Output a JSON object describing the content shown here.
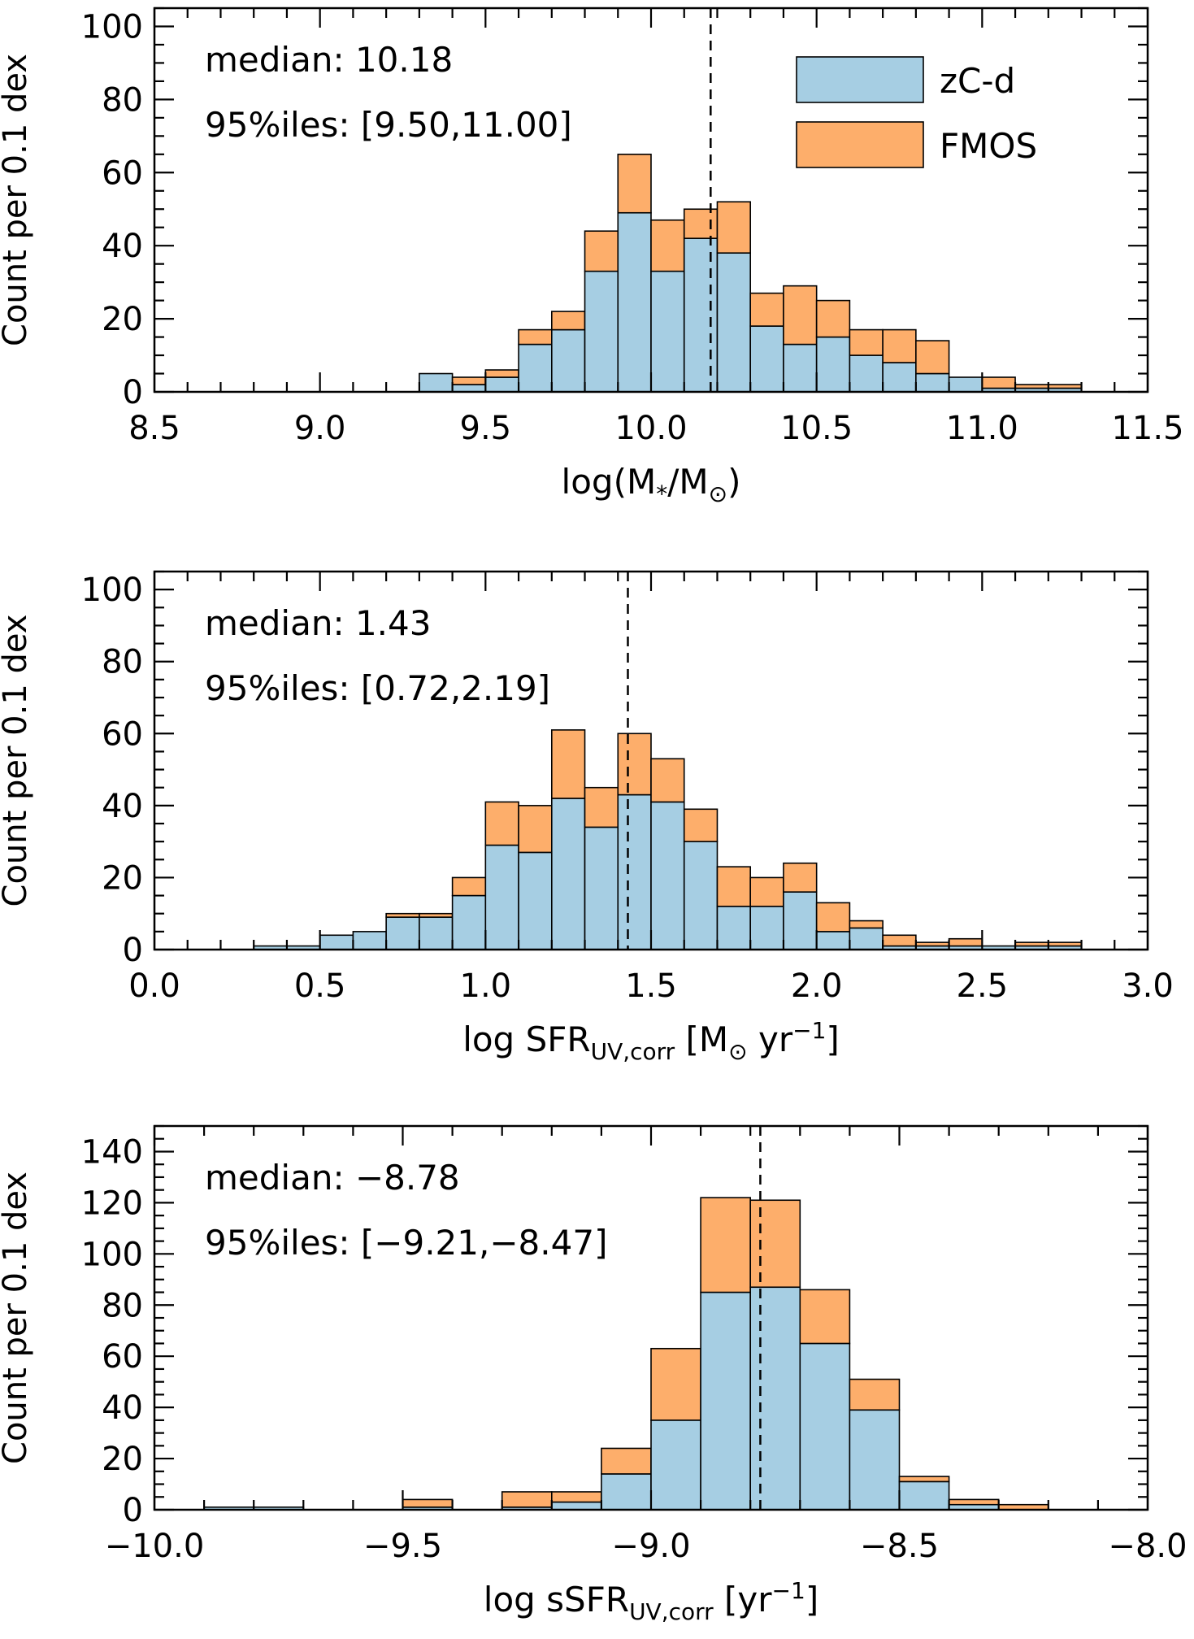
{
  "chart_data": [
    {
      "type": "bar",
      "id": "mass",
      "stacked": true,
      "xlabel": "log(M",
      "xlabel_sub": "*",
      "xlabel_mid": "/M",
      "xlabel_sub2": "⊙",
      "xlabel_end": ")",
      "ylabel": "Count per 0.1 dex",
      "xlim": [
        8.5,
        11.5
      ],
      "ylim": [
        0,
        105
      ],
      "xticks": [
        "8.5",
        "9.0",
        "9.5",
        "10.0",
        "10.5",
        "11.0",
        "11.5"
      ],
      "xtick_values": [
        8.5,
        9.0,
        9.5,
        10.0,
        10.5,
        11.0,
        11.5
      ],
      "yticks": [
        "0",
        "20",
        "40",
        "60",
        "80",
        "100"
      ],
      "ytick_values": [
        0,
        20,
        40,
        60,
        80,
        100
      ],
      "bin_width": 0.1,
      "bin_start": 9.3,
      "series": [
        {
          "name": "zC-d",
          "color": "#a6cee3",
          "values": [
            5,
            2,
            4,
            13,
            17,
            33,
            49,
            33,
            42,
            38,
            18,
            13,
            15,
            10,
            8,
            5,
            4,
            1,
            1,
            1,
            0,
            0
          ]
        },
        {
          "name": "FMOS",
          "color": "#fdae6b",
          "values": [
            0,
            2,
            2,
            4,
            5,
            11,
            16,
            14,
            8,
            14,
            9,
            16,
            10,
            7,
            9,
            9,
            0,
            3,
            1,
            1,
            0,
            0
          ]
        }
      ],
      "median_line": 10.18,
      "median_text": "median: 10.18",
      "percentile_text": "95%iles: [9.50,11.00]",
      "legend": [
        {
          "label": "zC-d",
          "color": "#a6cee3"
        },
        {
          "label": "FMOS",
          "color": "#fdae6b"
        }
      ],
      "legend_position": "top-right"
    },
    {
      "type": "bar",
      "id": "sfr",
      "stacked": true,
      "xlabel": "log SFR",
      "xlabel_sub": "UV,corr",
      "xlabel_end": " [M",
      "xlabel_sub2": "⊙",
      "xlabel_end2": " yr",
      "xlabel_sup": "−1",
      "xlabel_close": "]",
      "ylabel": "Count per 0.1 dex",
      "xlim": [
        0.0,
        3.0
      ],
      "ylim": [
        0,
        105
      ],
      "xticks": [
        "0.0",
        "0.5",
        "1.0",
        "1.5",
        "2.0",
        "2.5",
        "3.0"
      ],
      "xtick_values": [
        0.0,
        0.5,
        1.0,
        1.5,
        2.0,
        2.5,
        3.0
      ],
      "yticks": [
        "0",
        "20",
        "40",
        "60",
        "80",
        "100"
      ],
      "ytick_values": [
        0,
        20,
        40,
        60,
        80,
        100
      ],
      "bin_width": 0.1,
      "bin_start": 0.3,
      "series": [
        {
          "name": "zC-d",
          "color": "#a6cee3",
          "values": [
            1,
            1,
            4,
            5,
            9,
            9,
            15,
            29,
            27,
            42,
            34,
            43,
            41,
            30,
            12,
            12,
            16,
            5,
            6,
            1,
            1,
            1,
            1,
            1,
            1
          ]
        },
        {
          "name": "FMOS",
          "color": "#fdae6b",
          "values": [
            0,
            0,
            0,
            0,
            1,
            1,
            5,
            12,
            13,
            19,
            11,
            17,
            12,
            9,
            11,
            8,
            8,
            8,
            2,
            3,
            1,
            2,
            0,
            1,
            1
          ]
        }
      ],
      "median_line": 1.43,
      "median_text": "median: 1.43",
      "percentile_text": "95%iles: [0.72,2.19]"
    },
    {
      "type": "bar",
      "id": "ssfr",
      "stacked": true,
      "xlabel": "log sSFR",
      "xlabel_sub": "UV,corr",
      "xlabel_end": " [yr",
      "xlabel_sup": "−1",
      "xlabel_close": "]",
      "ylabel": "Count per 0.1 dex",
      "xlim": [
        -10.0,
        -8.0
      ],
      "ylim": [
        0,
        150
      ],
      "xticks": [
        "−10.0",
        "−9.5",
        "−9.0",
        "−8.5",
        "−8.0"
      ],
      "xtick_values": [
        -10.0,
        -9.5,
        -9.0,
        -8.5,
        -8.0
      ],
      "yticks": [
        "0",
        "20",
        "40",
        "60",
        "80",
        "100",
        "120",
        "140"
      ],
      "ytick_values": [
        0,
        20,
        40,
        60,
        80,
        100,
        120,
        140
      ],
      "bin_width": 0.1,
      "bin_start": -9.9,
      "bins": [
        -9.9,
        -9.8,
        -9.5,
        -9.3,
        -9.2,
        -9.1,
        -9.0,
        -8.9,
        -8.8,
        -8.7,
        -8.6,
        -8.5,
        -8.4,
        -8.3
      ],
      "bin_widths": [
        0.1,
        0.1,
        0.1,
        0.1,
        0.1,
        0.1,
        0.1,
        0.1,
        0.1,
        0.1,
        0.1,
        0.1,
        0.1,
        0.1
      ],
      "series": [
        {
          "name": "zC-d",
          "color": "#a6cee3",
          "values": [
            1,
            1,
            1,
            1,
            3,
            14,
            35,
            85,
            87,
            65,
            39,
            11,
            2,
            0
          ]
        },
        {
          "name": "FMOS",
          "color": "#fdae6b",
          "values": [
            0,
            0,
            3,
            6,
            4,
            10,
            28,
            37,
            34,
            21,
            12,
            2,
            2,
            2
          ]
        }
      ],
      "median_line": -8.78,
      "median_text": "median: −8.78",
      "percentile_text": "95%iles: [−9.21,−8.47]"
    }
  ]
}
